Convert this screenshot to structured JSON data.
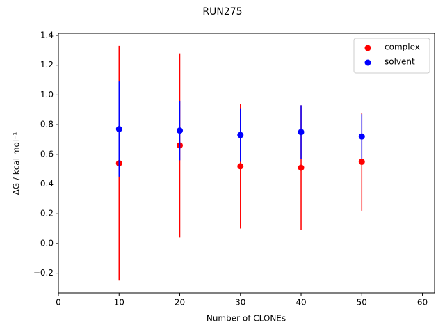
{
  "chart_data": {
    "type": "errorbar-scatter",
    "title": "RUN275",
    "x_label": "Number of CLONEs",
    "y_label": "ΔG / kcal mol⁻¹",
    "x": [
      10,
      20,
      30,
      40,
      50
    ],
    "series": [
      {
        "name": "complex",
        "color": "#ff0000",
        "values": [
          0.54,
          0.66,
          0.52,
          0.51,
          0.55
        ],
        "errors": [
          0.79,
          0.62,
          0.42,
          0.42,
          0.33
        ]
      },
      {
        "name": "solvent",
        "color": "#0000ff",
        "values": [
          0.77,
          0.76,
          0.73,
          0.75,
          0.72
        ],
        "errors": [
          0.32,
          0.2,
          0.18,
          0.18,
          0.15
        ]
      }
    ],
    "xlim": [
      0,
      62
    ],
    "ylim": [
      -0.333,
      1.414
    ],
    "xticks": [
      0,
      10,
      20,
      30,
      40,
      50,
      60
    ],
    "yticks": [
      {
        "value": -0.2,
        "label": "−0.2"
      },
      {
        "value": 0,
        "label": "0.0"
      },
      {
        "value": 0.2,
        "label": "0.2"
      },
      {
        "value": 0.4,
        "label": "0.4"
      },
      {
        "value": 0.6,
        "label": "0.6"
      },
      {
        "value": 0.8,
        "label": "0.8"
      },
      {
        "value": 1.0,
        "label": "1.0"
      },
      {
        "value": 1.2,
        "label": "1.2"
      },
      {
        "value": 1.4,
        "label": "1.4"
      }
    ],
    "legend": "upper right"
  }
}
